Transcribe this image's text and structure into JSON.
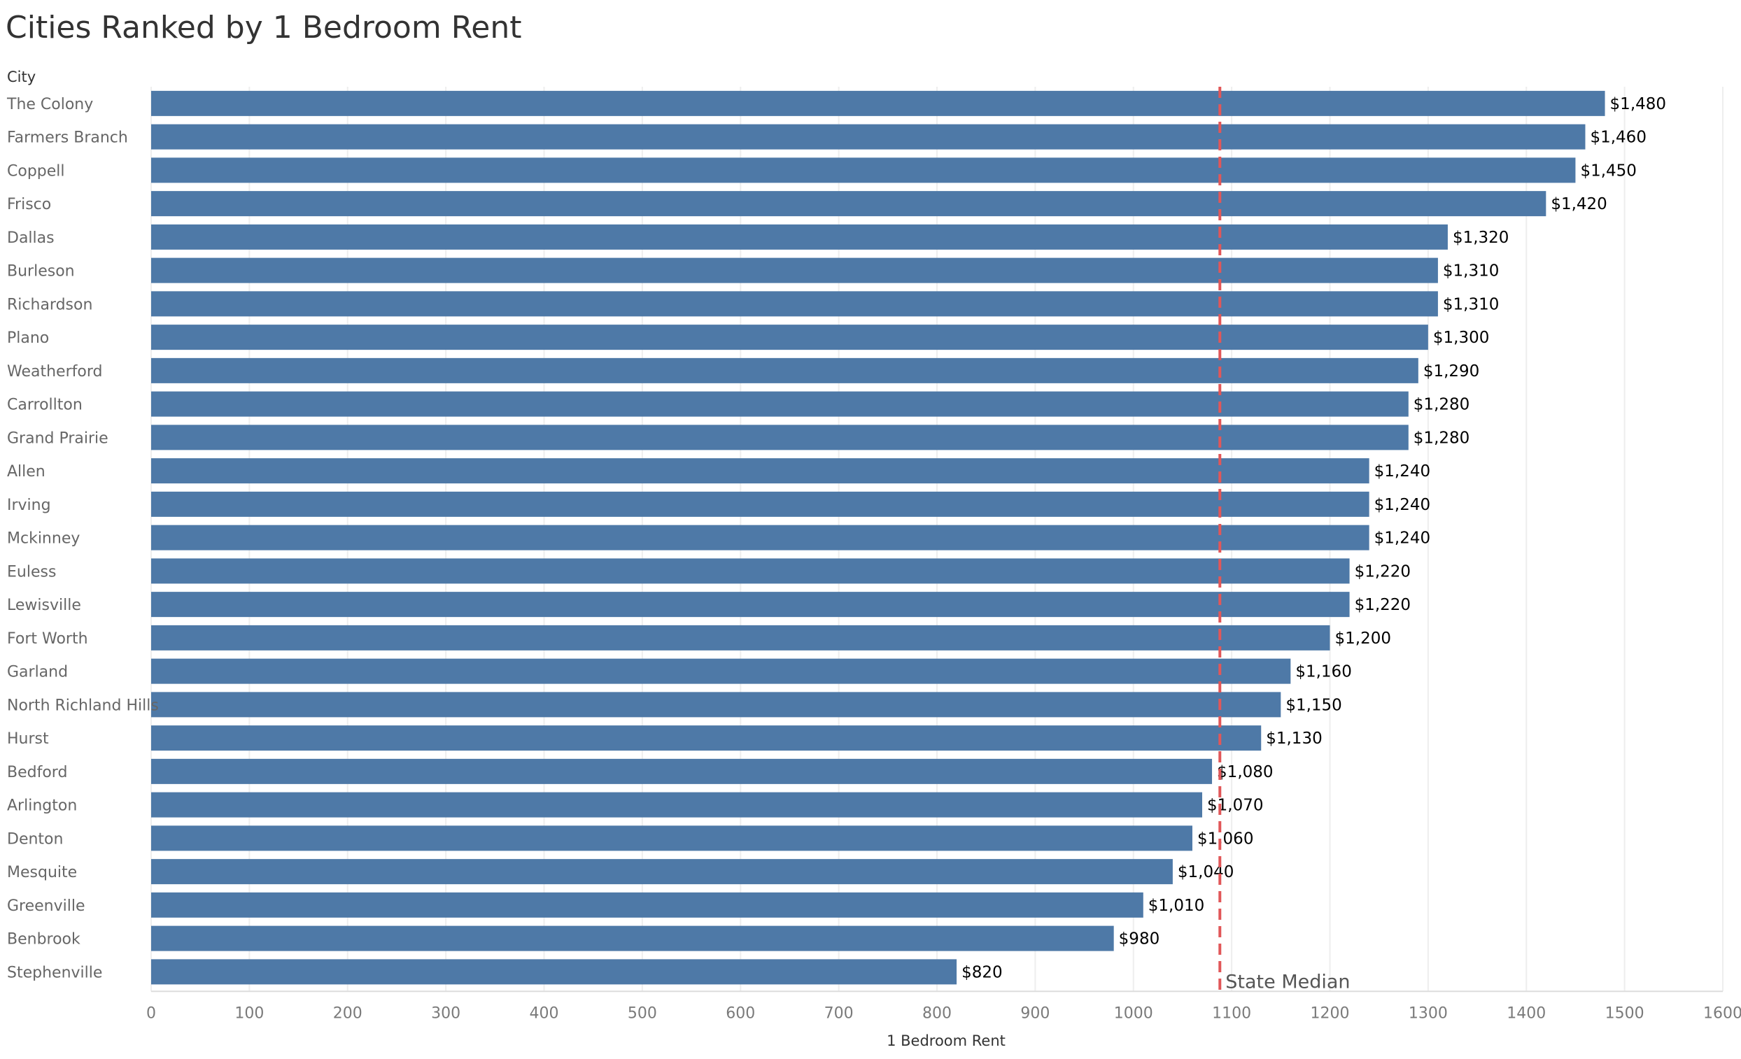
{
  "chart_data": {
    "type": "bar",
    "orientation": "horizontal",
    "title": "Cities Ranked by 1 Bedroom Rent",
    "category_header": "City",
    "xlabel": "1 Bedroom Rent",
    "xlim": [
      0,
      1600
    ],
    "x_ticks": [
      0,
      100,
      200,
      300,
      400,
      500,
      600,
      700,
      800,
      900,
      1000,
      1100,
      1200,
      1300,
      1400,
      1500,
      1600
    ],
    "grid": "vertical",
    "bar_color": "#4e79a7",
    "categories": [
      "The Colony",
      "Farmers Branch",
      "Coppell",
      "Frisco",
      "Dallas",
      "Burleson",
      "Richardson",
      "Plano",
      "Weatherford",
      "Carrollton",
      "Grand Prairie",
      "Allen",
      "Irving",
      "Mckinney",
      "Euless",
      "Lewisville",
      "Fort Worth",
      "Garland",
      "North Richland Hills",
      "Hurst",
      "Bedford",
      "Arlington",
      "Denton",
      "Mesquite",
      "Greenville",
      "Benbrook",
      "Stephenville"
    ],
    "values": [
      1480,
      1460,
      1450,
      1420,
      1320,
      1310,
      1310,
      1300,
      1290,
      1280,
      1280,
      1240,
      1240,
      1240,
      1220,
      1220,
      1200,
      1160,
      1150,
      1130,
      1080,
      1070,
      1060,
      1040,
      1010,
      980,
      820
    ],
    "value_labels": [
      "$1,480",
      "$1,460",
      "$1,450",
      "$1,420",
      "$1,320",
      "$1,310",
      "$1,310",
      "$1,300",
      "$1,290",
      "$1,280",
      "$1,280",
      "$1,240",
      "$1,240",
      "$1,240",
      "$1,220",
      "$1,220",
      "$1,200",
      "$1,160",
      "$1,150",
      "$1,130",
      "$1,080",
      "$1,070",
      "$1,060",
      "$1,040",
      "$1,010",
      "$980",
      "$820"
    ],
    "reference_line": {
      "label": "State Median",
      "value": 1088,
      "color": "#e15759",
      "style": "dashed"
    }
  }
}
